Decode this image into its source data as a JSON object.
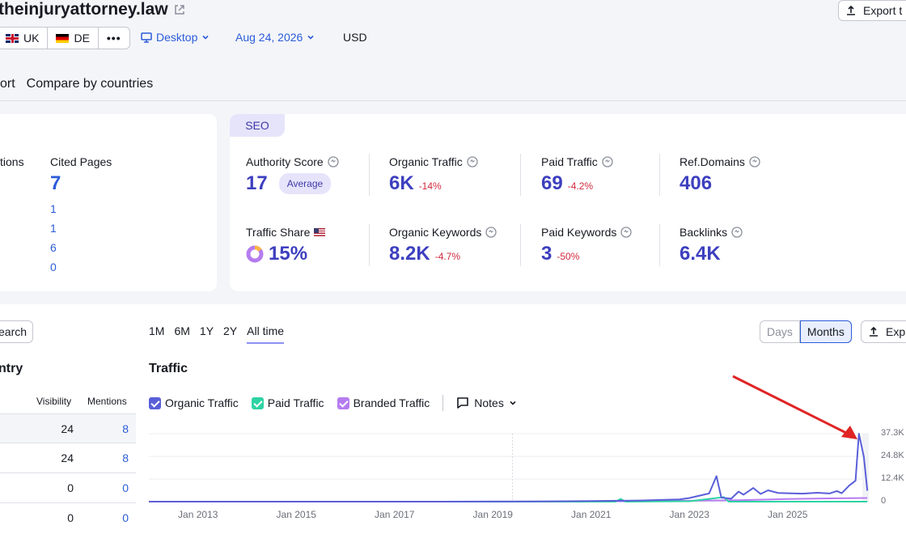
{
  "header": {
    "domain": "theinjuryattorney.law",
    "export_label": "Export t",
    "databases": [
      {
        "code": "UK",
        "flag": "uk"
      },
      {
        "code": "DE",
        "flag": "de"
      }
    ],
    "more_label": "•••",
    "device": "Desktop",
    "date": "Aug 24, 2026",
    "currency": "USD",
    "nav_tabs": [
      "ort",
      "Compare by countries"
    ]
  },
  "ai_card": {
    "mentions_label": "tions",
    "cited_pages_label": "Cited Pages",
    "cited_pages_value": "7",
    "cited_rows": [
      "1",
      "1",
      "6",
      "0"
    ]
  },
  "seo_card": {
    "tag": "SEO",
    "authority_score": {
      "label": "Authority Score",
      "value": "17",
      "badge": "Average"
    },
    "organic_traffic": {
      "label": "Organic Traffic",
      "value": "6K",
      "delta": "-14%"
    },
    "paid_traffic": {
      "label": "Paid Traffic",
      "value": "69",
      "delta": "-4.2%"
    },
    "ref_domains": {
      "label": "Ref.Domains",
      "value": "406"
    },
    "traffic_share": {
      "label": "Traffic Share",
      "value": "15%",
      "fraction": 0.15
    },
    "organic_keywords": {
      "label": "Organic Keywords",
      "value": "8.2K",
      "delta": "-4.7%"
    },
    "paid_keywords": {
      "label": "Paid Keywords",
      "value": "3",
      "delta": "-50%"
    },
    "backlinks": {
      "label": "Backlinks",
      "value": "6.4K"
    }
  },
  "country_panel": {
    "search_label": "earch",
    "title": "ntry",
    "columns": {
      "visibility": "Visibility",
      "mentions": "Mentions"
    },
    "rows": [
      {
        "visibility": "24",
        "mentions": "8"
      },
      {
        "visibility": "24",
        "mentions": "8"
      },
      {
        "visibility": "0",
        "mentions": "0"
      },
      {
        "visibility": "0",
        "mentions": "0"
      }
    ]
  },
  "traffic_panel": {
    "ranges": [
      "1M",
      "6M",
      "1Y",
      "2Y",
      "All time"
    ],
    "active_range": "All time",
    "granularity": {
      "days": "Days",
      "months": "Months",
      "active": "Months"
    },
    "export_label": "Exp",
    "title": "Traffic",
    "notes_label": "Notes"
  },
  "colors": {
    "organic": "#5a5fd8",
    "paid": "#2ed3a4",
    "branded": "#b57cf0",
    "accent": "#2b5cd8",
    "negative": "#d1293d",
    "arrow": "#e02424"
  },
  "chart_data": {
    "type": "line",
    "title": "Traffic",
    "series": [
      {
        "name": "Organic Traffic",
        "points": [
          [
            2012.0,
            0
          ],
          [
            2014,
            0
          ],
          [
            2016,
            0
          ],
          [
            2018,
            0
          ],
          [
            2019,
            50
          ],
          [
            2020,
            100
          ],
          [
            2021,
            300
          ],
          [
            2022,
            600
          ],
          [
            2022.8,
            1200
          ],
          [
            2023,
            2000
          ],
          [
            2023.4,
            4500
          ],
          [
            2023.55,
            14000
          ],
          [
            2023.65,
            2200
          ],
          [
            2023.85,
            1600
          ],
          [
            2024.0,
            5500
          ],
          [
            2024.1,
            3800
          ],
          [
            2024.3,
            7500
          ],
          [
            2024.45,
            4200
          ],
          [
            2024.6,
            6200
          ],
          [
            2024.8,
            4800
          ],
          [
            2025.0,
            4600
          ],
          [
            2025.3,
            4400
          ],
          [
            2025.6,
            4900
          ],
          [
            2025.85,
            4500
          ],
          [
            2026.0,
            5800
          ],
          [
            2026.1,
            4600
          ],
          [
            2026.25,
            8800
          ],
          [
            2026.38,
            11500
          ],
          [
            2026.45,
            37300
          ],
          [
            2026.55,
            24500
          ],
          [
            2026.62,
            6000
          ]
        ]
      },
      {
        "name": "Paid Traffic",
        "points": [
          [
            2012.0,
            0
          ],
          [
            2016,
            0
          ],
          [
            2020,
            0
          ],
          [
            2021.5,
            0
          ],
          [
            2021.6,
            1500
          ],
          [
            2021.7,
            0
          ],
          [
            2023.0,
            200
          ],
          [
            2023.7,
            2500
          ],
          [
            2023.8,
            0
          ],
          [
            2026.62,
            0
          ]
        ]
      },
      {
        "name": "Branded Traffic",
        "points": [
          [
            2012.0,
            0
          ],
          [
            2018,
            0
          ],
          [
            2022,
            200
          ],
          [
            2024,
            800
          ],
          [
            2025,
            1400
          ],
          [
            2026.0,
            1800
          ],
          [
            2026.62,
            2000
          ]
        ]
      }
    ],
    "x_ticks": [
      "Jan 2013",
      "Jan 2015",
      "Jan 2017",
      "Jan 2019",
      "Jan 2021",
      "Jan 2023",
      "Jan 2025"
    ],
    "x_tick_values": [
      2013,
      2015,
      2017,
      2019,
      2021,
      2023,
      2025
    ],
    "y_ticks": [
      "0",
      "12.4K",
      "24.8K",
      "37.3K"
    ],
    "y_tick_values": [
      0,
      12400,
      24800,
      37300
    ],
    "xlim": [
      2012.0,
      2026.65
    ],
    "ylim": [
      0,
      37300
    ],
    "grid": true
  }
}
